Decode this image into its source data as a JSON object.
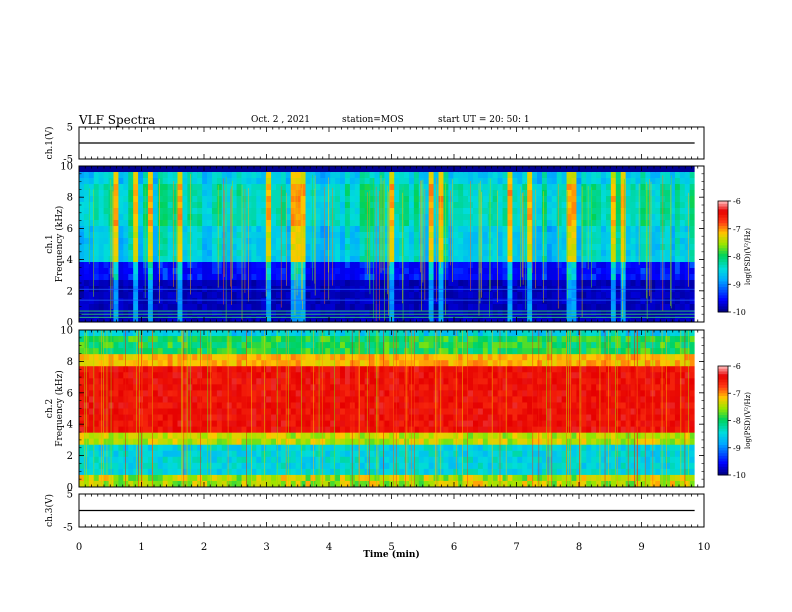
{
  "header": {
    "title": "VLF Spectra",
    "date": "Oct. 2 , 2021",
    "station": "station=MOS",
    "start_ut": "start UT = 20: 50: 1"
  },
  "chart_data": [
    {
      "type": "line",
      "panel": "ch1-voltage",
      "ylabel": "ch.1(V)",
      "ylim": [
        -5,
        5
      ],
      "yticks": [
        "5",
        "-5"
      ],
      "series": [
        {
          "x": [
            0,
            9.85
          ],
          "values": [
            0,
            0
          ]
        }
      ]
    },
    {
      "type": "heatmap",
      "panel": "ch1-spectrogram",
      "ylabel": "ch.1 Frequency (kHz)",
      "ylim": [
        0,
        10
      ],
      "yticks": [
        "0",
        "2",
        "4",
        "6",
        "8",
        "10"
      ],
      "xlim": [
        0,
        10
      ],
      "data_end_min": 9.85,
      "colorbar": {
        "label": "log(PSD)(V²/Hz)",
        "range": [
          -10,
          -6
        ],
        "ticks": [
          "-6",
          "-7",
          "-8",
          "-9",
          "-10"
        ]
      }
    },
    {
      "type": "heatmap",
      "panel": "ch2-spectrogram",
      "ylabel": "ch.2 Frequency (kHz)",
      "ylim": [
        0,
        10
      ],
      "yticks": [
        "0",
        "2",
        "4",
        "6",
        "8",
        "10"
      ],
      "xlim": [
        0,
        10
      ],
      "data_end_min": 9.85,
      "colorbar": {
        "label": "log(PSD)(V²/Hz)",
        "range": [
          -10,
          -6
        ],
        "ticks": [
          "-6",
          "-7",
          "-8",
          "-9",
          "-10"
        ]
      }
    },
    {
      "type": "line",
      "panel": "ch3-voltage",
      "ylabel": "ch.3(V)",
      "ylim": [
        -5,
        5
      ],
      "yticks": [
        "5",
        "-5"
      ],
      "xlabel": "Time (min)",
      "xlim": [
        0,
        10
      ],
      "xticks": [
        "0",
        "1",
        "2",
        "3",
        "4",
        "5",
        "6",
        "7",
        "8",
        "9",
        "10"
      ],
      "series": [
        {
          "x": [
            0,
            9.85
          ],
          "values": [
            0,
            0
          ]
        }
      ]
    }
  ]
}
